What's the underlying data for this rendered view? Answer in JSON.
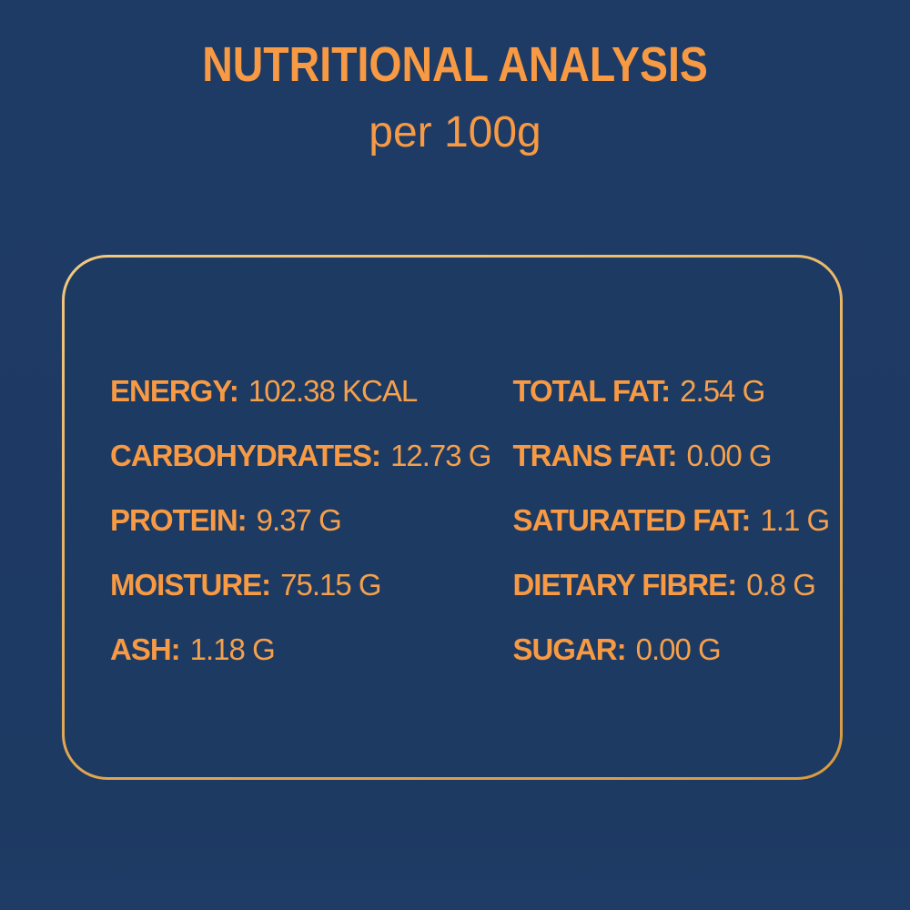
{
  "colors": {
    "background_navy": "#1d3a63",
    "text_orange": "#f79a43",
    "value_orange": "#f5a04c",
    "border_gold": "#e7b160"
  },
  "header": {
    "title": "NUTRITIONAL ANALYSIS",
    "subtitle": "per 100g"
  },
  "panel": {
    "left_column": [
      {
        "label": "ENERGY:",
        "value": "102.38 KCAL"
      },
      {
        "label": "CARBOHYDRATES:",
        "value": "12.73 G"
      },
      {
        "label": "PROTEIN:",
        "value": "9.37 G"
      },
      {
        "label": "MOISTURE:",
        "value": "75.15 G"
      },
      {
        "label": "ASH:",
        "value": "1.18 G"
      }
    ],
    "right_column": [
      {
        "label": "TOTAL FAT:",
        "value": "2.54 G"
      },
      {
        "label": "TRANS FAT:",
        "value": "0.00 G"
      },
      {
        "label": "SATURATED FAT:",
        "value": "1.1 G"
      },
      {
        "label": "DIETARY FIBRE:",
        "value": "0.8 G"
      },
      {
        "label": "SUGAR:",
        "value": "0.00 G"
      }
    ]
  }
}
